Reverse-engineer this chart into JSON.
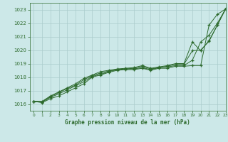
{
  "title": "Graphe pression niveau de la mer (hPa)",
  "bg_color": "#cce8e8",
  "grid_color": "#aacccc",
  "line_color": "#2d6a2d",
  "xlim": [
    -0.5,
    23
  ],
  "ylim": [
    1015.5,
    1023.5
  ],
  "yticks": [
    1016,
    1017,
    1018,
    1019,
    1020,
    1021,
    1022,
    1023
  ],
  "xticks": [
    0,
    1,
    2,
    3,
    4,
    5,
    6,
    7,
    8,
    9,
    10,
    11,
    12,
    13,
    14,
    15,
    16,
    17,
    18,
    19,
    20,
    21,
    22,
    23
  ],
  "series": [
    [
      1016.2,
      1016.1,
      1016.4,
      1016.6,
      1016.9,
      1017.2,
      1017.5,
      1018.0,
      1018.15,
      1018.35,
      1018.5,
      1018.55,
      1018.55,
      1018.65,
      1018.5,
      1018.65,
      1018.65,
      1018.8,
      1018.8,
      1018.85,
      1018.85,
      1021.85,
      1022.65,
      1023.05
    ],
    [
      1016.2,
      1016.15,
      1016.5,
      1016.75,
      1017.05,
      1017.35,
      1017.65,
      1018.05,
      1018.2,
      1018.4,
      1018.55,
      1018.6,
      1018.6,
      1018.7,
      1018.55,
      1018.7,
      1018.75,
      1018.85,
      1018.85,
      1019.25,
      1020.6,
      1021.1,
      1022.0,
      1023.05
    ],
    [
      1016.2,
      1016.15,
      1016.55,
      1016.85,
      1017.15,
      1017.4,
      1017.8,
      1018.1,
      1018.3,
      1018.45,
      1018.55,
      1018.6,
      1018.65,
      1018.8,
      1018.6,
      1018.7,
      1018.8,
      1018.95,
      1018.95,
      1019.95,
      1020.0,
      1020.65,
      1021.85,
      1023.05
    ],
    [
      1016.2,
      1016.2,
      1016.6,
      1016.9,
      1017.2,
      1017.5,
      1017.9,
      1018.15,
      1018.4,
      1018.5,
      1018.6,
      1018.65,
      1018.7,
      1018.85,
      1018.65,
      1018.75,
      1018.85,
      1019.0,
      1019.0,
      1020.6,
      1019.95,
      1020.7,
      1021.85,
      1023.1
    ]
  ]
}
